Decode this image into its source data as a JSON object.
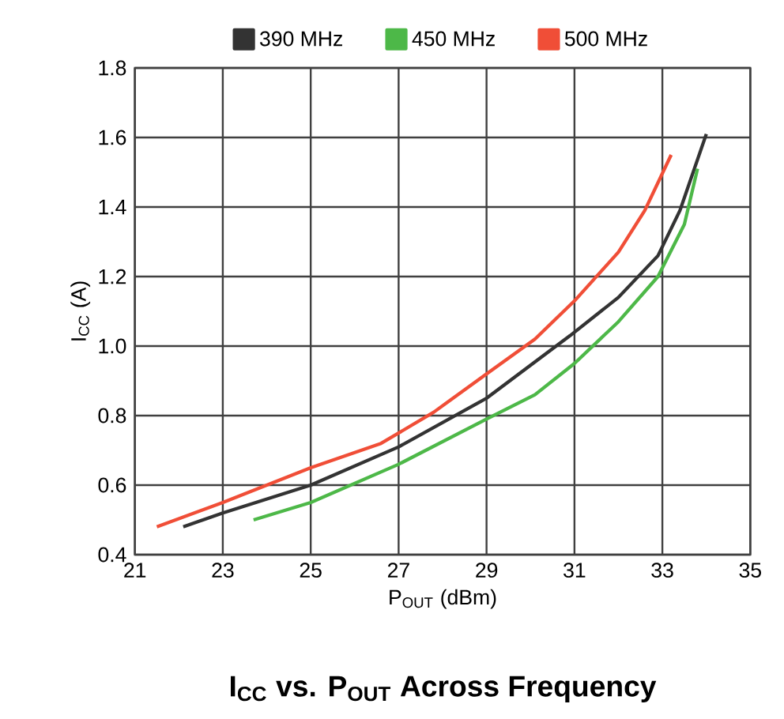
{
  "chart_data": {
    "type": "line",
    "title": "**I$_{CC}$ vs. P$_{OUT}$ Across Frequency**",
    "xlabel": "P$_{OUT}$ (dBm)",
    "ylabel": "I$_{CC}$ (A)",
    "xlim": [
      21,
      35
    ],
    "xticks": [
      21,
      23,
      25,
      27,
      29,
      31,
      33,
      35
    ],
    "ylim": [
      0.4,
      1.8
    ],
    "yticks": [
      {
        "value": 0.4,
        "label": "0.4"
      },
      {
        "value": 0.6,
        "label": "0.6"
      },
      {
        "value": 0.8,
        "label": "0.8"
      },
      {
        "value": 1.0,
        "label": "1.0"
      },
      {
        "value": 1.2,
        "label": "1.2"
      },
      {
        "value": 1.4,
        "label": "1.4"
      },
      {
        "value": 1.6,
        "label": "1.6"
      },
      {
        "value": 1.8,
        "label": "1.8"
      }
    ],
    "grid": true,
    "legend": "top",
    "marker": "none",
    "line_style": "solid",
    "series": [
      {
        "name": "390 MHz",
        "color": "#333333",
        "x": [
          22.1,
          23.0,
          25.0,
          27.0,
          29.0,
          30.9,
          32.0,
          32.9,
          33.4,
          34.0
        ],
        "values": [
          0.48,
          0.52,
          0.6,
          0.71,
          0.85,
          1.03,
          1.14,
          1.26,
          1.39,
          1.61
        ]
      },
      {
        "name": "450 MHz",
        "color": "#4db848",
        "x": [
          23.7,
          25.0,
          27.0,
          29.0,
          30.1,
          31.0,
          32.0,
          32.9,
          33.5,
          33.8
        ],
        "values": [
          0.5,
          0.55,
          0.66,
          0.79,
          0.86,
          0.95,
          1.07,
          1.2,
          1.35,
          1.51
        ]
      },
      {
        "name": "500 MHz",
        "color": "#f04e37",
        "x": [
          21.5,
          23.0,
          25.0,
          26.6,
          27.8,
          29.0,
          30.1,
          31.0,
          32.0,
          32.6,
          33.2
        ],
        "values": [
          0.48,
          0.55,
          0.65,
          0.72,
          0.81,
          0.92,
          1.02,
          1.13,
          1.27,
          1.39,
          1.55
        ]
      }
    ]
  }
}
